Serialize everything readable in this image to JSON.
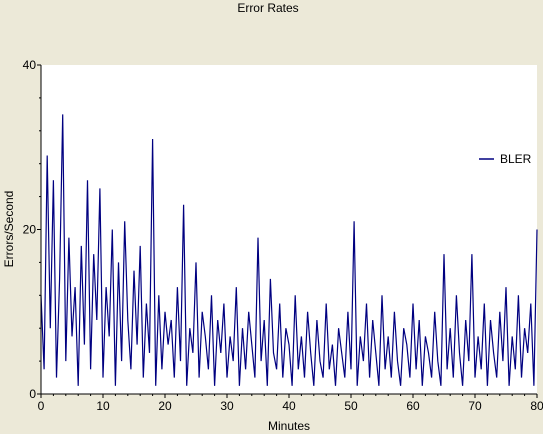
{
  "chart_data": {
    "type": "line",
    "title": "Error Rates",
    "xlabel": "Minutes",
    "ylabel": "Errors/Second",
    "xlim": [
      0,
      80
    ],
    "ylim": [
      0,
      40
    ],
    "x_ticks": [
      "0",
      "10",
      "20",
      "30",
      "40",
      "50",
      "60",
      "70",
      "80"
    ],
    "y_ticks": [
      "0",
      "20",
      "40"
    ],
    "grid": false,
    "legend_position": "right",
    "colors": {
      "background": "#ECE9D8",
      "plot_area": "#FFFFFF",
      "series": "#000080"
    },
    "series": [
      {
        "name": "BLER",
        "x": [
          0,
          0.5,
          1,
          1.5,
          2,
          2.5,
          3,
          3.5,
          4,
          4.5,
          5,
          5.5,
          6,
          6.5,
          7,
          7.5,
          8,
          8.5,
          9,
          9.5,
          10,
          10.5,
          11,
          11.5,
          12,
          12.5,
          13,
          13.5,
          14,
          14.5,
          15,
          15.5,
          16,
          16.5,
          17,
          17.5,
          18,
          18.5,
          19,
          19.5,
          20,
          20.5,
          21,
          21.5,
          22,
          22.5,
          23,
          23.5,
          24,
          24.5,
          25,
          25.5,
          26,
          26.5,
          27,
          27.5,
          28,
          28.5,
          29,
          29.5,
          30,
          30.5,
          31,
          31.5,
          32,
          32.5,
          33,
          33.5,
          34,
          34.5,
          35,
          35.5,
          36,
          36.5,
          37,
          37.5,
          38,
          38.5,
          39,
          39.5,
          40,
          40.5,
          41,
          41.5,
          42,
          42.5,
          43,
          43.5,
          44,
          44.5,
          45,
          45.5,
          46,
          46.5,
          47,
          47.5,
          48,
          48.5,
          49,
          49.5,
          50,
          50.5,
          51,
          51.5,
          52,
          52.5,
          53,
          53.5,
          54,
          54.5,
          55,
          55.5,
          56,
          56.5,
          57,
          57.5,
          58,
          58.5,
          59,
          59.5,
          60,
          60.5,
          61,
          61.5,
          62,
          62.5,
          63,
          63.5,
          64,
          64.5,
          65,
          65.5,
          66,
          66.5,
          67,
          67.5,
          68,
          68.5,
          69,
          69.5,
          70,
          70.5,
          71,
          71.5,
          72,
          72.5,
          73,
          73.5,
          74,
          74.5,
          75,
          75.5,
          76,
          76.5,
          77,
          77.5,
          78,
          78.5,
          79,
          79.5,
          80
        ],
        "y": [
          12,
          3,
          29,
          8,
          26,
          2,
          14,
          34,
          4,
          19,
          7,
          13,
          1,
          18,
          6,
          26,
          3,
          17,
          9,
          25,
          2,
          13,
          7,
          20,
          1,
          16,
          4,
          21,
          9,
          3,
          15,
          6,
          18,
          2,
          11,
          5,
          31,
          1,
          12,
          3,
          10,
          6,
          9,
          2,
          13,
          4,
          23,
          1,
          8,
          5,
          16,
          2,
          10,
          7,
          3,
          12,
          1,
          9,
          5,
          11,
          2,
          7,
          4,
          13,
          1,
          8,
          3,
          10,
          6,
          2,
          19,
          4,
          9,
          1,
          14,
          5,
          3,
          11,
          2,
          8,
          6,
          1,
          12,
          3,
          7,
          2,
          10,
          5,
          1,
          9,
          4,
          2,
          11,
          3,
          6,
          1,
          8,
          5,
          2,
          10,
          3,
          21,
          1,
          7,
          4,
          11,
          2,
          9,
          5,
          1,
          12,
          3,
          7,
          2,
          10,
          4,
          1,
          8,
          6,
          2,
          11,
          3,
          9,
          1,
          7,
          5,
          2,
          10,
          4,
          1,
          17,
          3,
          8,
          2,
          12,
          5,
          1,
          9,
          4,
          17,
          2,
          7,
          3,
          11,
          1,
          9,
          5,
          2,
          10,
          4,
          13,
          1,
          7,
          3,
          12,
          2,
          8,
          5,
          11,
          1,
          20
        ]
      }
    ]
  }
}
